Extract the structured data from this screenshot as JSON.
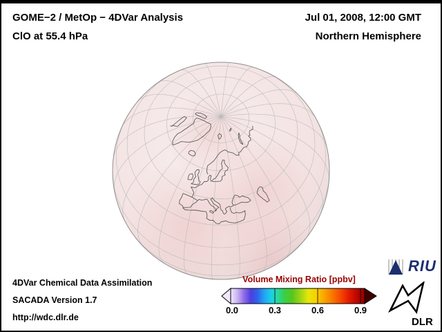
{
  "header": {
    "title_line1": "GOME−2 / MetOp − 4DVar Analysis",
    "title_line2": "ClO at 55.4 hPa",
    "date": "Jul 01, 2008, 12:00 GMT",
    "region": "Northern Hemisphere"
  },
  "footer": {
    "line1": "4DVar Chemical Data Assimilation",
    "line2": "SACADA Version 1.7",
    "line3": "http://wdc.dlr.de"
  },
  "colorbar": {
    "title": "Volume Mixing Ratio [ppbv]",
    "title_color": "#990000",
    "ticks": [
      "0.0",
      "0.3",
      "0.6",
      "0.9"
    ],
    "left_arrow_color": "#efe9fa",
    "right_arrow_color": "#3f0000",
    "gradient": [
      {
        "o": "0%",
        "c": "#efe6fb"
      },
      {
        "o": "5%",
        "c": "#c9b4f2"
      },
      {
        "o": "10%",
        "c": "#8f6ae8"
      },
      {
        "o": "15%",
        "c": "#4d3fe0"
      },
      {
        "o": "20%",
        "c": "#2f62ec"
      },
      {
        "o": "25%",
        "c": "#23a3f2"
      },
      {
        "o": "30%",
        "c": "#19cfe8"
      },
      {
        "o": "35%",
        "c": "#2ad9a0"
      },
      {
        "o": "40%",
        "c": "#37cf4a"
      },
      {
        "o": "46%",
        "c": "#57c61e"
      },
      {
        "o": "52%",
        "c": "#9ed414"
      },
      {
        "o": "58%",
        "c": "#e6e60a"
      },
      {
        "o": "64%",
        "c": "#f8cf00"
      },
      {
        "o": "70%",
        "c": "#f9a300"
      },
      {
        "o": "76%",
        "c": "#f97700"
      },
      {
        "o": "82%",
        "c": "#f74700"
      },
      {
        "o": "88%",
        "c": "#e41c00"
      },
      {
        "o": "94%",
        "c": "#bc0600"
      },
      {
        "o": "100%",
        "c": "#8f0000"
      }
    ]
  },
  "globe": {
    "fill_center": "#f8eeee",
    "fill_mid": "#f4e3e3",
    "fill_edge": "#e7d5d5",
    "tint_color": "#dd8c8c",
    "graticule_color": "#bbbbbb",
    "coast_color": "#4a4a4a",
    "rim_color": "#909090"
  },
  "logos": {
    "riu_text": "RIU",
    "riu_color": "#1b2f6e",
    "dlr_text": "DLR"
  }
}
